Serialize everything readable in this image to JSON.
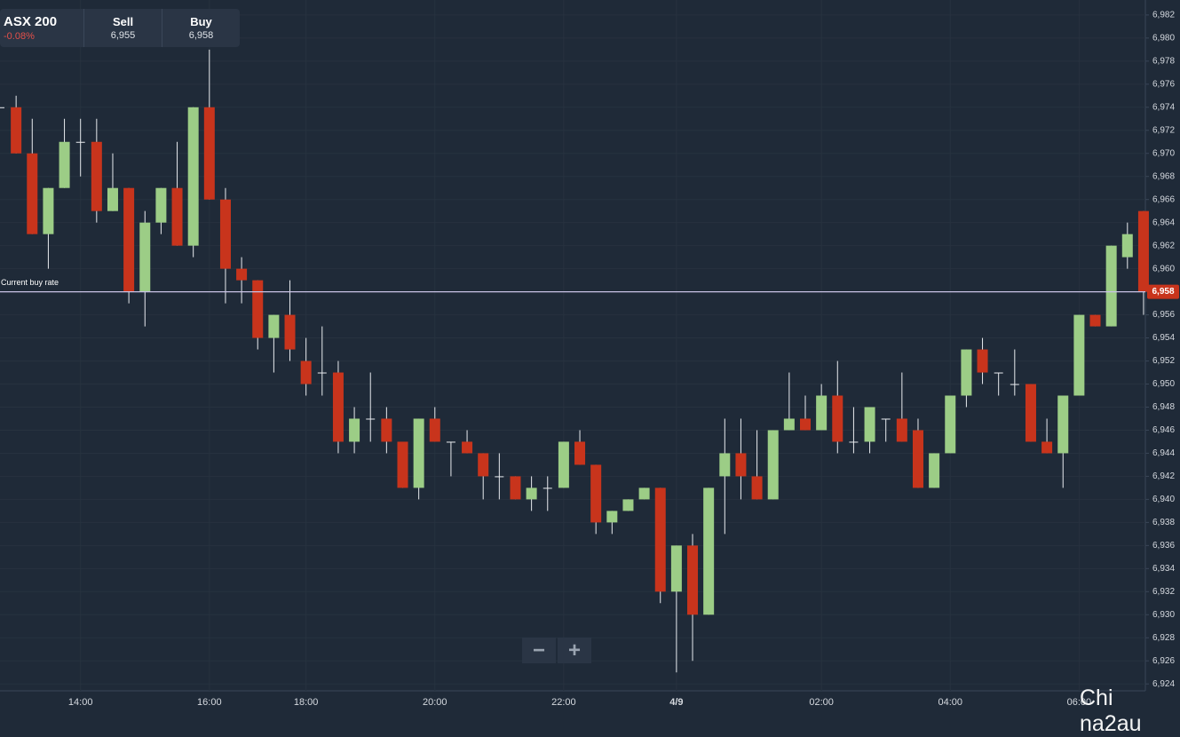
{
  "instrument": {
    "name": "ASX 200",
    "change": "-0.08%",
    "sell_label": "Sell",
    "sell": "6,955",
    "buy_label": "Buy",
    "buy": "6,958"
  },
  "watermark": "Chi na2au",
  "chart_data": {
    "type": "candlestick",
    "categories": [
      null,
      null,
      null,
      null,
      null,
      "14:00",
      null,
      null,
      null,
      null,
      null,
      null,
      null,
      "16:00",
      null,
      null,
      null,
      null,
      null,
      "18:00",
      null,
      null,
      null,
      null,
      null,
      null,
      null,
      "20:00",
      null,
      null,
      null,
      null,
      null,
      null,
      null,
      "22:00",
      null,
      null,
      null,
      null,
      null,
      null,
      "4/9",
      null,
      null,
      null,
      null,
      null,
      null,
      null,
      null,
      "02:00",
      null,
      null,
      null,
      null,
      null,
      null,
      null,
      "04:00",
      null,
      null,
      null,
      null,
      null,
      null,
      null,
      "06:00",
      null,
      null,
      null,
      null
    ],
    "open": [
      6974,
      6974,
      6970,
      6963,
      6967,
      6971,
      6971,
      6965,
      6967,
      6958,
      6964,
      6967,
      6962,
      6974,
      6966,
      6960,
      6959,
      6954,
      6956,
      6952,
      6951,
      6951,
      6945,
      6947,
      6947,
      6945,
      6941,
      6947,
      6945,
      6945,
      6944,
      6942,
      6942,
      6940,
      6941,
      6941,
      6945,
      6943,
      6938,
      6939,
      6940,
      6941,
      6932,
      6936,
      6930,
      6942,
      6944,
      6942,
      6940,
      6946,
      6947,
      6946,
      6949,
      6945,
      6945,
      6947,
      6947,
      6946,
      6941,
      6944,
      6949,
      6953,
      6951,
      6950,
      6950,
      6945,
      6944,
      6949,
      6956,
      6955,
      6961,
      6965
    ],
    "high": [
      6974,
      6975,
      6973,
      6967,
      6973,
      6973,
      6973,
      6970,
      6967,
      6965,
      6967,
      6971,
      6974,
      6979,
      6967,
      6961,
      6959,
      6956,
      6959,
      6954,
      6955,
      6952,
      6948,
      6951,
      6948,
      6945,
      6947,
      6948,
      6945,
      6946,
      6944,
      6944,
      6942,
      6942,
      6942,
      6945,
      6946,
      6943,
      6939,
      6940,
      6941,
      6941,
      6936,
      6937,
      6941,
      6947,
      6947,
      6946,
      6946,
      6951,
      6949,
      6950,
      6952,
      6948,
      6948,
      6947,
      6951,
      6947,
      6944,
      6949,
      6953,
      6954,
      6951,
      6953,
      6950,
      6947,
      6949,
      6956,
      6956,
      6962,
      6964,
      6965
    ],
    "low": [
      6974,
      6970,
      6963,
      6960,
      6967,
      6968,
      6964,
      6965,
      6957,
      6955,
      6963,
      6962,
      6961,
      6966,
      6957,
      6957,
      6953,
      6951,
      6952,
      6949,
      6949,
      6944,
      6944,
      6945,
      6944,
      6941,
      6940,
      6945,
      6942,
      6944,
      6940,
      6940,
      6940,
      6939,
      6939,
      6941,
      6943,
      6937,
      6937,
      6939,
      6940,
      6931,
      6925,
      6926,
      6930,
      6937,
      6940,
      6940,
      6940,
      6946,
      6946,
      6946,
      6944,
      6944,
      6944,
      6945,
      6945,
      6941,
      6941,
      6944,
      6948,
      6950,
      6949,
      6949,
      6945,
      6944,
      6941,
      6949,
      6955,
      6955,
      6960,
      6956
    ],
    "close": [
      6974,
      6970,
      6963,
      6967,
      6971,
      6971,
      6965,
      6967,
      6958,
      6964,
      6967,
      6962,
      6974,
      6966,
      6960,
      6959,
      6954,
      6956,
      6953,
      6950,
      6951,
      6945,
      6947,
      6947,
      6945,
      6941,
      6947,
      6945,
      6945,
      6944,
      6942,
      6942,
      6940,
      6941,
      6941,
      6945,
      6943,
      6938,
      6939,
      6940,
      6941,
      6932,
      6936,
      6930,
      6941,
      6944,
      6942,
      6940,
      6946,
      6947,
      6946,
      6949,
      6945,
      6945,
      6948,
      6947,
      6945,
      6941,
      6944,
      6949,
      6953,
      6951,
      6951,
      6950,
      6945,
      6944,
      6949,
      6956,
      6955,
      6962,
      6963,
      6958
    ],
    "up_color": "#9ccd86",
    "down_color": "#c8341c",
    "ylim": [
      6923.4,
      6983.3
    ],
    "yticks": [
      {
        "value": 6924,
        "label": "6,924"
      },
      {
        "value": 6926,
        "label": "6,926"
      },
      {
        "value": 6928,
        "label": "6,928"
      },
      {
        "value": 6930,
        "label": "6,930"
      },
      {
        "value": 6932,
        "label": "6,932"
      },
      {
        "value": 6934,
        "label": "6,934"
      },
      {
        "value": 6936,
        "label": "6,936"
      },
      {
        "value": 6938,
        "label": "6,938"
      },
      {
        "value": 6940,
        "label": "6,940"
      },
      {
        "value": 6942,
        "label": "6,942"
      },
      {
        "value": 6944,
        "label": "6,944"
      },
      {
        "value": 6946,
        "label": "6,946"
      },
      {
        "value": 6948,
        "label": "6,948"
      },
      {
        "value": 6950,
        "label": "6,950"
      },
      {
        "value": 6952,
        "label": "6,952"
      },
      {
        "value": 6954,
        "label": "6,954"
      },
      {
        "value": 6956,
        "label": "6,956"
      },
      {
        "value": 6958,
        "label": "6,958"
      },
      {
        "value": 6960,
        "label": "6,960"
      },
      {
        "value": 6962,
        "label": "6,962"
      },
      {
        "value": 6964,
        "label": "6,964"
      },
      {
        "value": 6966,
        "label": "6,966"
      },
      {
        "value": 6968,
        "label": "6,968"
      },
      {
        "value": 6970,
        "label": "6,970"
      },
      {
        "value": 6972,
        "label": "6,972"
      },
      {
        "value": 6974,
        "label": "6,974"
      },
      {
        "value": 6976,
        "label": "6,976"
      },
      {
        "value": 6978,
        "label": "6,978"
      },
      {
        "value": 6980,
        "label": "6,980"
      },
      {
        "value": 6982,
        "label": "6,982"
      }
    ],
    "grid": true,
    "current_rate": {
      "value": 6958,
      "value_label": "6,958",
      "label": "Current buy rate",
      "color": "#c8341c"
    }
  }
}
